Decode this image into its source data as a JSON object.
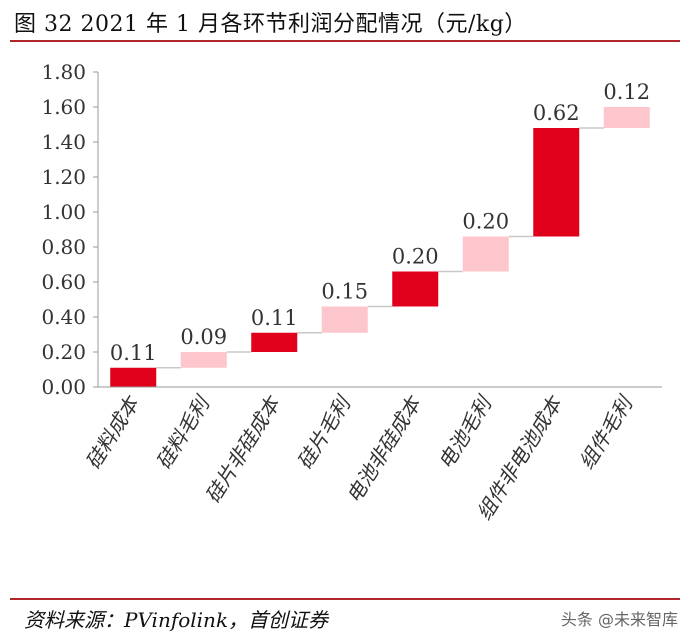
{
  "title": "图 32 2021 年 1 月各环节利润分配情况（元/kg）",
  "source": "资料来源：PVinfolink，首创证券",
  "watermark": "头条 @未来智库",
  "colors": {
    "cost": "#e0001b",
    "profit": "#fcc6cc",
    "rule": "#b1262b",
    "connector": "#c8c8c8"
  },
  "chart_data": {
    "type": "bar",
    "subtype": "waterfall",
    "categories": [
      "硅料成本",
      "硅料毛利",
      "硅片非硅成本",
      "硅片毛利",
      "电池非硅成本",
      "电池毛利",
      "组件非电池成本",
      "组件毛利"
    ],
    "values": [
      0.11,
      0.09,
      0.11,
      0.15,
      0.2,
      0.2,
      0.62,
      0.12
    ],
    "value_labels": [
      "0.11",
      "0.09",
      "0.11",
      "0.15",
      "0.20",
      "0.20",
      "0.62",
      "0.12"
    ],
    "bar_kind": [
      "cost",
      "profit",
      "cost",
      "profit",
      "cost",
      "profit",
      "cost",
      "profit"
    ],
    "ylim": [
      0,
      1.8
    ],
    "yticks": [
      0,
      0.2,
      0.4,
      0.6,
      0.8,
      1.0,
      1.2,
      1.4,
      1.6,
      1.8
    ],
    "ytick_labels": [
      "0.00",
      "0.20",
      "0.40",
      "0.60",
      "0.80",
      "1.00",
      "1.20",
      "1.40",
      "1.60",
      "1.80"
    ],
    "grid": false,
    "legend": "none"
  }
}
